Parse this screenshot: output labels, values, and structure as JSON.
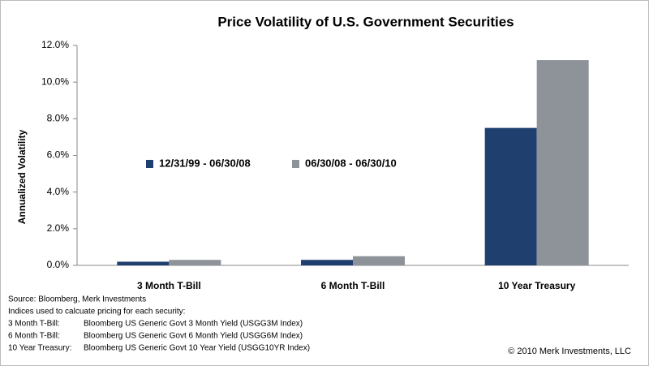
{
  "chart_data": {
    "type": "bar",
    "title": "Price Volatility of U.S. Government Securities",
    "y_label": "Annualized Volatility",
    "categories": [
      "3 Month T-Bill",
      "6 Month T-Bill",
      "10 Year Treasury"
    ],
    "series": [
      {
        "name": "12/31/99 - 06/30/08",
        "color": "#1f3f6e",
        "values": [
          0.2,
          0.3,
          7.5
        ]
      },
      {
        "name": "06/30/08 - 06/30/10",
        "color": "#8e9399",
        "values": [
          0.3,
          0.5,
          11.2
        ]
      }
    ],
    "ylim": [
      0,
      12
    ],
    "yticks": [
      {
        "value": 0,
        "label": "0.0%"
      },
      {
        "value": 2,
        "label": "2.0%"
      },
      {
        "value": 4,
        "label": "4.0%"
      },
      {
        "value": 6,
        "label": "6.0%"
      },
      {
        "value": 8,
        "label": "8.0%"
      },
      {
        "value": 10,
        "label": "10.0%"
      },
      {
        "value": 12,
        "label": "12.0%"
      }
    ],
    "grid": false,
    "legend": "center"
  },
  "notes": {
    "source": "Source: Bloomberg, Merk Investments",
    "intro": "Indices used to calcuate pricing for each security:",
    "indices": [
      [
        "3 Month T-Bill:",
        "Bloomberg US Generic Govt 3 Month Yield (USGG3M Index)"
      ],
      [
        "6 Month T-Bill:",
        "Bloomberg US Generic Govt 6 Month Yield (USGG6M Index)"
      ],
      [
        "10 Year Treasury:",
        "Bloomberg US Generic Govt 10 Year Yield (USGG10YR Index)"
      ]
    ]
  },
  "copyright": "© 2010 Merk Investments, LLC"
}
